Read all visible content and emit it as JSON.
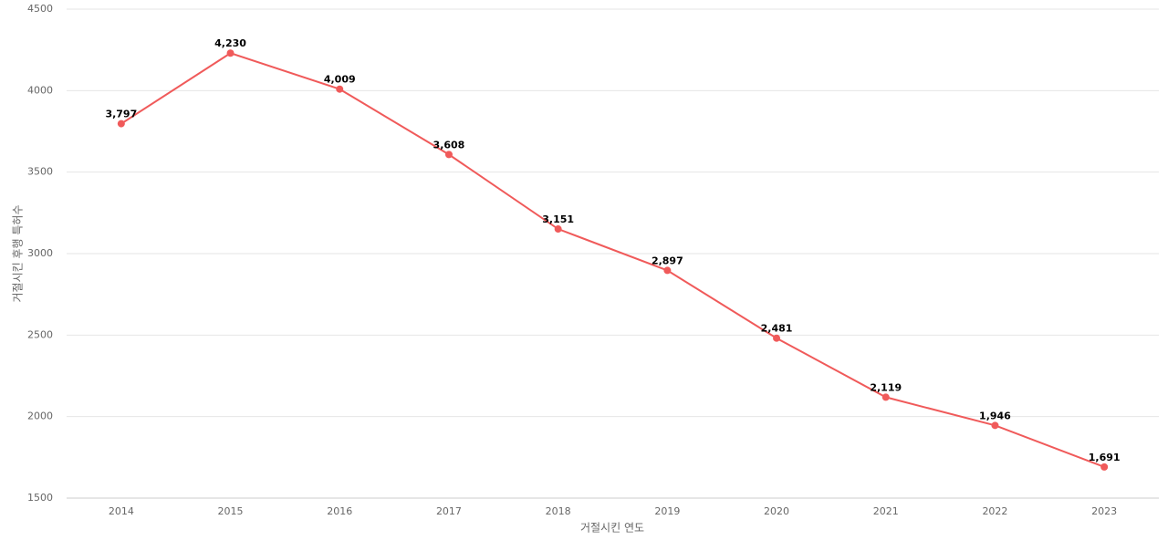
{
  "chart_data": {
    "type": "line",
    "x_label": "거절시킨 연도",
    "y_label": "거절시킨 후행 특허수",
    "categories": [
      "2014",
      "2015",
      "2016",
      "2017",
      "2018",
      "2019",
      "2020",
      "2021",
      "2022",
      "2023"
    ],
    "series": [
      {
        "name": "거절시킨 후행 특허수",
        "color": "#f05a5a",
        "values": [
          3797,
          4230,
          4009,
          3608,
          3151,
          2897,
          2481,
          2119,
          1946,
          1691
        ],
        "value_labels": [
          "3,797",
          "4,230",
          "4,009",
          "3,608",
          "3,151",
          "2,897",
          "2,481",
          "2,119",
          "1,946",
          "1,691"
        ]
      }
    ],
    "ylim": [
      1500,
      4500
    ],
    "yticks": [
      1500,
      2000,
      2500,
      3000,
      3500,
      4000,
      4500
    ],
    "grid": true
  }
}
